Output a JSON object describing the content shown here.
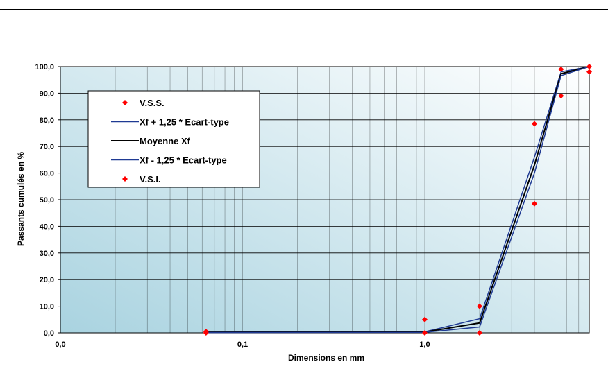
{
  "chart_data": {
    "type": "line",
    "xlabel": "Dimensions en mm",
    "ylabel": "Passants cumulés en %",
    "xscale": "log",
    "xlim": [
      0.01,
      8
    ],
    "ylim": [
      0,
      100
    ],
    "x_ticks": [
      {
        "value": 0.01,
        "label": "0,0"
      },
      {
        "value": 0.1,
        "label": "0,1"
      },
      {
        "value": 1,
        "label": "1,0"
      }
    ],
    "y_ticks": [
      {
        "value": 0,
        "label": "0,0"
      },
      {
        "value": 10,
        "label": "10,0"
      },
      {
        "value": 20,
        "label": "20,0"
      },
      {
        "value": 30,
        "label": "30,0"
      },
      {
        "value": 40,
        "label": "40,0"
      },
      {
        "value": 50,
        "label": "50,0"
      },
      {
        "value": 60,
        "label": "60,0"
      },
      {
        "value": 70,
        "label": "70,0"
      },
      {
        "value": 80,
        "label": "80,0"
      },
      {
        "value": 90,
        "label": "90,0"
      },
      {
        "value": 100,
        "label": "100,0"
      }
    ],
    "grid": true,
    "legend_position": "top-left",
    "series": [
      {
        "name": "V.S.S.",
        "kind": "marker",
        "color": "#ff0000",
        "x": [
          0.063,
          1,
          2,
          4,
          5.6,
          8
        ],
        "y": [
          0.5,
          5,
          10,
          78.5,
          99,
          100
        ]
      },
      {
        "name": "Xf + 1,25 * Ecart-type",
        "kind": "line",
        "color": "#1f3a93",
        "x": [
          0.063,
          1,
          2,
          4,
          5.6,
          8
        ],
        "y": [
          0.3,
          0.4,
          5.3,
          66,
          98,
          100
        ]
      },
      {
        "name": "Moyenne Xf",
        "kind": "line",
        "color": "#000000",
        "x": [
          0.063,
          1,
          2,
          4,
          5.6,
          8
        ],
        "y": [
          0.2,
          0.3,
          3.7,
          63,
          97.3,
          100
        ]
      },
      {
        "name": "Xf - 1,25 * Ecart-type",
        "kind": "line",
        "color": "#1f3a93",
        "x": [
          0.063,
          1,
          2,
          4,
          5.6,
          8
        ],
        "y": [
          0.1,
          0.2,
          2.2,
          60,
          96.6,
          100
        ]
      },
      {
        "name": "V.S.I.",
        "kind": "marker",
        "color": "#ff0000",
        "x": [
          0.063,
          1,
          2,
          4,
          5.6,
          8
        ],
        "y": [
          0,
          0,
          0,
          48.5,
          89,
          98
        ]
      }
    ]
  }
}
